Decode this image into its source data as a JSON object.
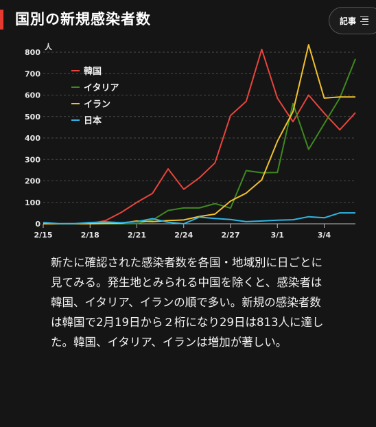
{
  "header": {
    "title": "国別の新規感染者数",
    "article_button_label": "記事"
  },
  "colors": {
    "accent": "#e53a2f",
    "background": "#151515",
    "gridline": "#4a4a4a"
  },
  "chart_data": {
    "type": "line",
    "y_unit": "人",
    "ylim": [
      0,
      800
    ],
    "y_ticks": [
      0,
      100,
      200,
      300,
      400,
      500,
      600,
      700,
      800
    ],
    "x_tick_labels": [
      "2/15",
      "2/18",
      "2/21",
      "2/24",
      "2/27",
      "3/1",
      "3/4"
    ],
    "x_tick_indices": [
      0,
      3,
      6,
      9,
      12,
      15,
      18
    ],
    "x": [
      "2/15",
      "2/16",
      "2/17",
      "2/18",
      "2/19",
      "2/20",
      "2/21",
      "2/22",
      "2/23",
      "2/24",
      "2/25",
      "2/26",
      "2/27",
      "2/28",
      "2/29",
      "3/1",
      "3/2",
      "3/3",
      "3/4",
      "3/5",
      "3/6"
    ],
    "grid": true,
    "legend_position": "top-left",
    "series": [
      {
        "name": "韓国",
        "color": "#e8453c",
        "values": [
          0,
          0,
          1,
          1,
          15,
          53,
          100,
          142,
          256,
          161,
          214,
          284,
          505,
          571,
          813,
          586,
          476,
          600,
          516,
          438,
          518
        ]
      },
      {
        "name": "イタリア",
        "color": "#3f8a1e",
        "values": [
          0,
          0,
          0,
          0,
          0,
          0,
          1,
          17,
          62,
          74,
          74,
          94,
          73,
          248,
          238,
          239,
          561,
          347,
          466,
          587,
          769
        ]
      },
      {
        "name": "イラン",
        "color": "#f2c12e",
        "values": [
          0,
          0,
          0,
          0,
          2,
          3,
          13,
          10,
          15,
          18,
          34,
          45,
          106,
          143,
          205,
          385,
          523,
          835,
          586,
          591,
          591
        ]
      },
      {
        "name": "日本",
        "color": "#2fb6e6",
        "values": [
          6,
          1,
          1,
          6,
          9,
          5,
          10,
          24,
          7,
          0,
          31,
          25,
          20,
          10,
          13,
          17,
          19,
          33,
          28,
          51,
          51
        ]
      }
    ]
  },
  "caption": "新たに確認された感染者数を各国・地域別に日ごとに見てみる。発生地とみられる中国を除くと、感染者は韓国、イタリア、イランの順で多い。新規の感染者数は韓国で2月19日から２桁になり29日は813人に達した。韓国、イタリア、イランは増加が著しい。"
}
